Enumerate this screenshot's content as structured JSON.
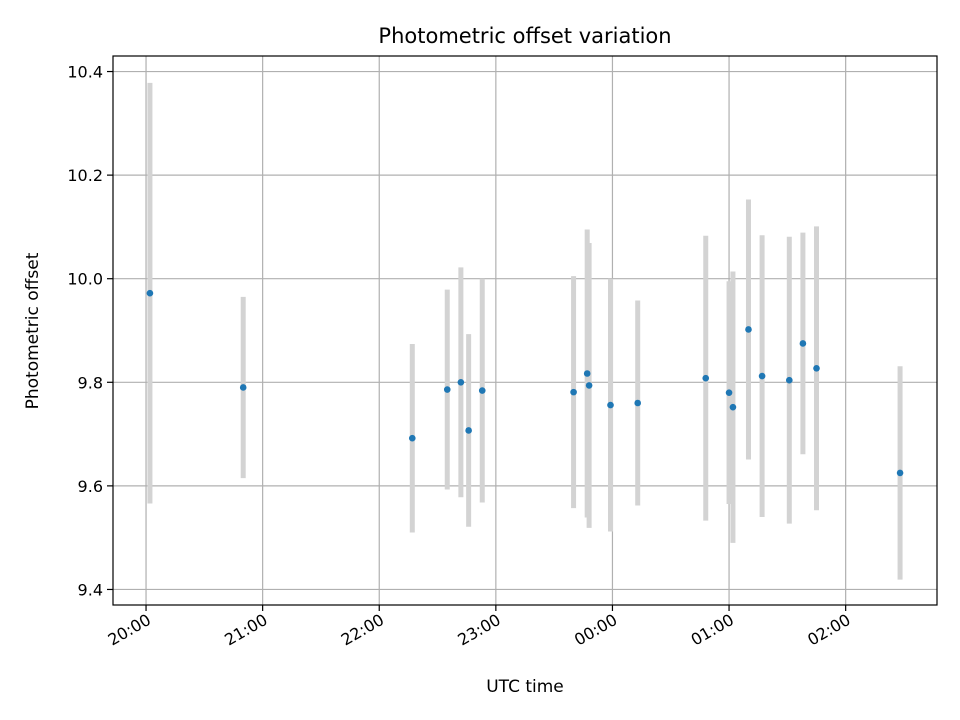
{
  "chart_data": {
    "type": "scatter",
    "title": "Photometric offset variation",
    "xlabel": "UTC time",
    "ylabel": "Photometric offset",
    "x_unit": "UTC time (2020-01-01 20:00 to 2020-01-02 02:30)",
    "xlim": [
      "2020-01-01T19:43",
      "2020-01-02T02:47"
    ],
    "ylim": [
      9.37,
      10.43
    ],
    "x_ticks": [
      "20:00",
      "21:00",
      "22:00",
      "23:00",
      "00:00",
      "01:00",
      "02:00"
    ],
    "x_tick_values": [
      "2020-01-01T20:00",
      "2020-01-01T21:00",
      "2020-01-01T22:00",
      "2020-01-01T23:00",
      "2020-01-02T00:00",
      "2020-01-02T01:00",
      "2020-01-02T02:00"
    ],
    "y_ticks": [
      "9.4",
      "9.6",
      "9.8",
      "10.0",
      "10.2",
      "10.4"
    ],
    "y_tick_values": [
      9.4,
      9.6,
      9.8,
      10.0,
      10.2,
      10.4
    ],
    "grid": true,
    "point_color": "#1f77b4",
    "errorbar_color": "#d3d3d3",
    "points": [
      {
        "x": "2020-01-01T20:02",
        "y": 9.972,
        "err": 0.406
      },
      {
        "x": "2020-01-01T20:50",
        "y": 9.79,
        "err": 0.175
      },
      {
        "x": "2020-01-01T22:17",
        "y": 9.692,
        "err": 0.182
      },
      {
        "x": "2020-01-01T22:35",
        "y": 9.786,
        "err": 0.193
      },
      {
        "x": "2020-01-01T22:42",
        "y": 9.8,
        "err": 0.222
      },
      {
        "x": "2020-01-01T22:46",
        "y": 9.707,
        "err": 0.186
      },
      {
        "x": "2020-01-01T22:53",
        "y": 9.784,
        "err": 0.216
      },
      {
        "x": "2020-01-01T23:40",
        "y": 9.781,
        "err": 0.224
      },
      {
        "x": "2020-01-01T23:47",
        "y": 9.817,
        "err": 0.278
      },
      {
        "x": "2020-01-01T23:48",
        "y": 9.794,
        "err": 0.275
      },
      {
        "x": "2020-01-01T23:59",
        "y": 9.756,
        "err": 0.244
      },
      {
        "x": "2020-01-02T00:13",
        "y": 9.76,
        "err": 0.198
      },
      {
        "x": "2020-01-02T00:48",
        "y": 9.808,
        "err": 0.275
      },
      {
        "x": "2020-01-02T01:00",
        "y": 9.78,
        "err": 0.215
      },
      {
        "x": "2020-01-02T01:02",
        "y": 9.752,
        "err": 0.262
      },
      {
        "x": "2020-01-02T01:10",
        "y": 9.902,
        "err": 0.251
      },
      {
        "x": "2020-01-02T01:17",
        "y": 9.812,
        "err": 0.272
      },
      {
        "x": "2020-01-02T01:31",
        "y": 9.804,
        "err": 0.277
      },
      {
        "x": "2020-01-02T01:38",
        "y": 9.875,
        "err": 0.214
      },
      {
        "x": "2020-01-02T01:45",
        "y": 9.827,
        "err": 0.274
      },
      {
        "x": "2020-01-02T02:28",
        "y": 9.625,
        "err": 0.206
      }
    ]
  }
}
